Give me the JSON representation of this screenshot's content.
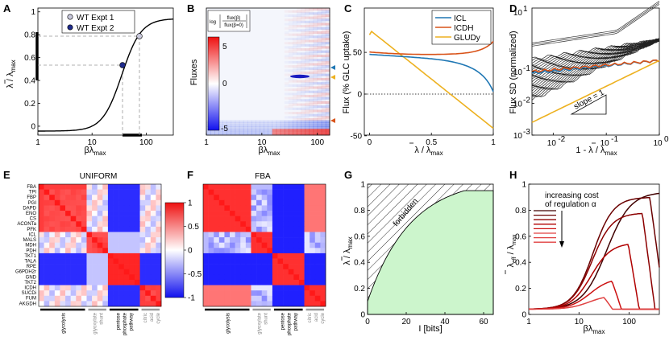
{
  "panels": {
    "A": {
      "letter": "A",
      "xlabel_main": "βλ",
      "xlabel_sub": "max",
      "ylabel_main": "λ / λ",
      "ylabel_sub": "max",
      "xticks": [
        "1",
        "10",
        "100"
      ],
      "yticks": [
        "0",
        "0.2",
        "0.4",
        "0.6",
        "0.8",
        "1"
      ],
      "legend": [
        "WT Expt 1",
        "WT Expt 2"
      ],
      "colors": {
        "expt1": "#c8c8dc",
        "expt2": "#1f2b8c"
      }
    },
    "B": {
      "letter": "B",
      "ylabel": "Fluxes",
      "xlabel_main": "βλ",
      "xlabel_sub": "max",
      "xticks": [
        "1",
        "10",
        "100"
      ],
      "colorbar_ticks": [
        "5",
        "0",
        "-5"
      ],
      "colorbar_title_log": "log",
      "colorbar_title_num": "flux(β)",
      "colorbar_title_den": "flux(β=0)"
    },
    "C": {
      "letter": "C",
      "ylabel": "Flux (% GLC uptake)",
      "xlabel_main": "λ / λ",
      "xlabel_sub": "max",
      "xticks": [
        "0",
        "0.5",
        "1"
      ],
      "yticks": [
        "-50",
        "0",
        "50"
      ],
      "legend": [
        {
          "name": "ICL",
          "color": "#1f77b4"
        },
        {
          "name": "ICDH",
          "color": "#d95319"
        },
        {
          "name": "GLUDy",
          "color": "#edb120"
        }
      ]
    },
    "D": {
      "letter": "D",
      "ylabel": "Flux SD (normalized)",
      "xlabel_main": "1 - λ / λ",
      "xlabel_sub": "max",
      "yticks": [
        "10",
        "10",
        "10"
      ],
      "yticks_exp": [
        "-3",
        "-2",
        "-1"
      ],
      "ytick_top": "10",
      "ytick_top_exp": "1",
      "ytick_one": "10",
      "ytick_one_exp": "0",
      "xticks": [
        "10",
        "10",
        "10"
      ],
      "xticks_exp": [
        "-2",
        "-1",
        "0"
      ],
      "slope_label": "slope = 1"
    },
    "E": {
      "letter": "E",
      "title": "UNIFORM",
      "rows": [
        "FBA",
        "TPI",
        "FBP",
        "PGI",
        "DAPD",
        "ENO",
        "CS",
        "ACONTa",
        "PFK",
        "ICL",
        "MALS",
        "MDH",
        "PDH",
        "TKT1",
        "TALA",
        "RPE",
        "G6PDH2r",
        "GND",
        "TKT2",
        "ICDH",
        "SUCDi",
        "FUM",
        "AKGDH"
      ],
      "groups": [
        "glycolysis",
        "glyoxylate shunt",
        "pentose phosphate pathway",
        "citric acid cycle"
      ],
      "colorbar_ticks": [
        "1",
        "0.5",
        "0",
        "-0.5",
        "-1"
      ]
    },
    "F": {
      "letter": "F",
      "title": "FBA",
      "groups": [
        "glycolysis",
        "glyoxylate shunt",
        "pentose phosphate pathway",
        "citric acid cycle"
      ]
    },
    "G": {
      "letter": "G",
      "ylabel_main": "λ / λ",
      "ylabel_sub": "max",
      "xlabel": "I [bits]",
      "xticks": [
        "0",
        "20",
        "40",
        "60"
      ],
      "yticks": [
        "0",
        "0.2",
        "0.4",
        "0.6",
        "0.8",
        "1"
      ],
      "region_label": "forbidden",
      "fill_color": "#ccf5cc"
    },
    "H": {
      "letter": "H",
      "ylabel_main": "λ",
      "ylabel_sub1": "eff",
      "ylabel_mid": " / λ",
      "ylabel_sub2": "max",
      "xlabel_main": "βλ",
      "xlabel_sub": "max",
      "xticks": [
        "1",
        "10",
        "100"
      ],
      "yticks": [
        "0",
        "0.2",
        "0.4",
        "0.6",
        "0.8",
        "1"
      ],
      "legend_line1": "increasing cost",
      "legend_line2": "of regulation α"
    }
  }
}
